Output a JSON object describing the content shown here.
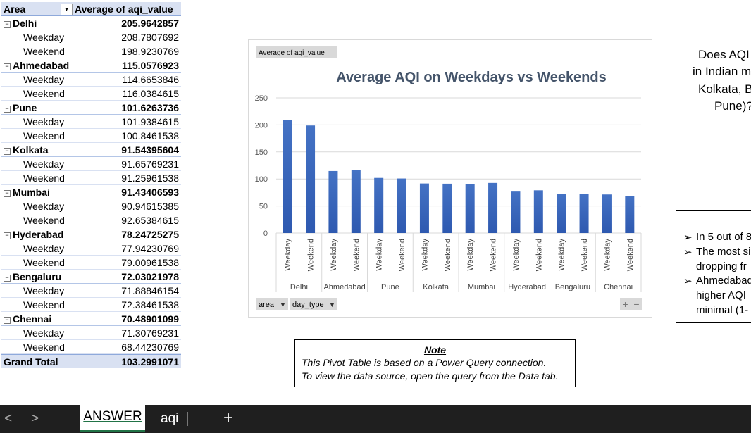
{
  "pivot": {
    "header": [
      "Area",
      "Average of aqi_value"
    ],
    "groups": [
      {
        "name": "Delhi",
        "value": "205.9642857",
        "rows": [
          {
            "label": "Weekday",
            "value": "208.7807692"
          },
          {
            "label": "Weekend",
            "value": "198.9230769"
          }
        ]
      },
      {
        "name": "Ahmedabad",
        "value": "115.0576923",
        "rows": [
          {
            "label": "Weekday",
            "value": "114.6653846"
          },
          {
            "label": "Weekend",
            "value": "116.0384615"
          }
        ]
      },
      {
        "name": "Pune",
        "value": "101.6263736",
        "rows": [
          {
            "label": "Weekday",
            "value": "101.9384615"
          },
          {
            "label": "Weekend",
            "value": "100.8461538"
          }
        ]
      },
      {
        "name": "Kolkata",
        "value": "91.54395604",
        "rows": [
          {
            "label": "Weekday",
            "value": "91.65769231"
          },
          {
            "label": "Weekend",
            "value": "91.25961538"
          }
        ]
      },
      {
        "name": "Mumbai",
        "value": "91.43406593",
        "rows": [
          {
            "label": "Weekday",
            "value": "90.94615385"
          },
          {
            "label": "Weekend",
            "value": "92.65384615"
          }
        ]
      },
      {
        "name": "Hyderabad",
        "value": "78.24725275",
        "rows": [
          {
            "label": "Weekday",
            "value": "77.94230769"
          },
          {
            "label": "Weekend",
            "value": "79.00961538"
          }
        ]
      },
      {
        "name": "Bengaluru",
        "value": "72.03021978",
        "rows": [
          {
            "label": "Weekday",
            "value": "71.88846154"
          },
          {
            "label": "Weekend",
            "value": "72.38461538"
          }
        ]
      },
      {
        "name": "Chennai",
        "value": "70.48901099",
        "rows": [
          {
            "label": "Weekday",
            "value": "71.30769231"
          },
          {
            "label": "Weekend",
            "value": "68.44230769"
          }
        ]
      }
    ],
    "total": {
      "label": "Grand Total",
      "value": "103.2991071"
    }
  },
  "chart_data": {
    "type": "bar",
    "title": "Average AQI on Weekdays vs Weekends",
    "field_button": "Average of aqi_value",
    "groups": [
      "Delhi",
      "Ahmedabad",
      "Pune",
      "Kolkata",
      "Mumbai",
      "Hyderabad",
      "Bengaluru",
      "Chennai"
    ],
    "categories": [
      "Weekday",
      "Weekend",
      "Weekday",
      "Weekend",
      "Weekday",
      "Weekend",
      "Weekday",
      "Weekend",
      "Weekday",
      "Weekend",
      "Weekday",
      "Weekend",
      "Weekday",
      "Weekend",
      "Weekday",
      "Weekend"
    ],
    "values": [
      208.7807692,
      198.9230769,
      114.6653846,
      116.0384615,
      101.9384615,
      100.8461538,
      91.65769231,
      91.25961538,
      90.94615385,
      92.65384615,
      77.94230769,
      79.00961538,
      71.88846154,
      72.38461538,
      71.30769231,
      68.44230769
    ],
    "color": "#4472c4",
    "ylim": [
      0,
      250
    ],
    "yticks": [
      0,
      50,
      100,
      150,
      200,
      250
    ],
    "grid": true,
    "filters": [
      "area",
      "day_type"
    ]
  },
  "question_box": {
    "lines": [
      "Does AQI",
      "in Indian m",
      "Kolkata, B",
      "Pune)?"
    ]
  },
  "findings_box": {
    "lines": [
      "In 5 out of 8",
      "The most si",
      "dropping fr",
      "Ahmedabad",
      "higher AQI",
      "minimal (1-"
    ]
  },
  "note": {
    "title": "Note",
    "lines": [
      "This Pivot Table is based on a Power Query connection.",
      "To view the data source, open the query from the Data tab."
    ]
  },
  "tabs": [
    "ANSWER",
    "aqi"
  ]
}
